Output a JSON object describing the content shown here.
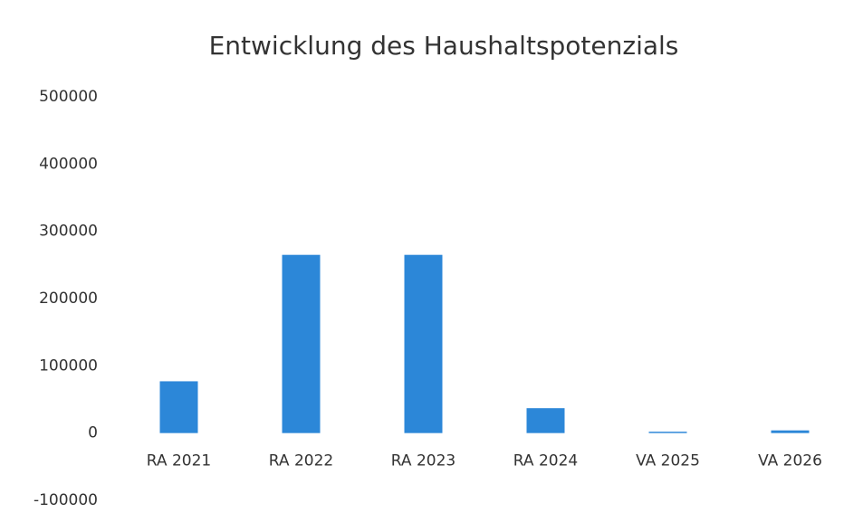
{
  "chart_data": {
    "type": "bar",
    "title": "Entwicklung des Haushaltspotenzials",
    "categories": [
      "RA 2021",
      "RA 2022",
      "RA 2023",
      "RA 2024",
      "VA 2025",
      "VA 2026"
    ],
    "values": [
      77000,
      265000,
      265000,
      37000,
      2000,
      4000
    ],
    "color": "#2c87d8",
    "ylim": [
      -100000,
      500000
    ],
    "yticks": [
      -100000,
      0,
      100000,
      200000,
      300000,
      400000,
      500000
    ]
  }
}
